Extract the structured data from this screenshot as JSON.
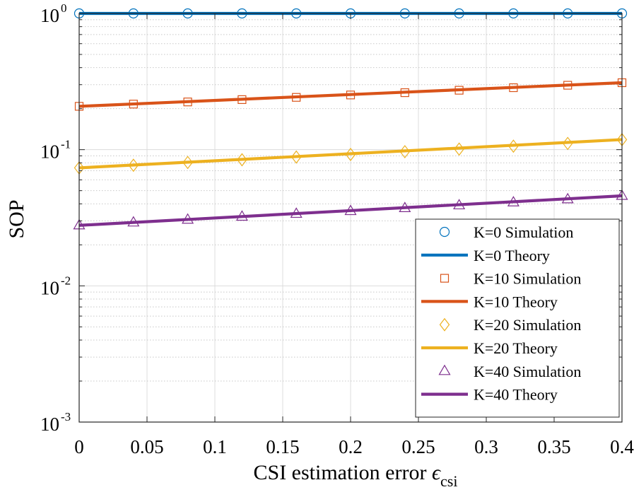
{
  "chart_data": {
    "type": "line",
    "xlabel": "CSI estimation error ",
    "xlabel_symbol": "ϵ",
    "xlabel_subscript": "csi",
    "ylabel": "SOP",
    "yscale": "log",
    "xlim": [
      0,
      0.4
    ],
    "ylim": [
      0.001,
      1
    ],
    "x_ticks": [
      0,
      0.05,
      0.1,
      0.15,
      0.2,
      0.25,
      0.3,
      0.35,
      0.4
    ],
    "x_tick_labels": [
      "0",
      "0.05",
      "0.1",
      "0.15",
      "0.2",
      "0.25",
      "0.3",
      "0.35",
      "0.4"
    ],
    "y_ticks": [
      {
        "value": 1,
        "base": "10",
        "exp": "0"
      },
      {
        "value": 0.1,
        "base": "10",
        "exp": "-1"
      },
      {
        "value": 0.01,
        "base": "10",
        "exp": "-2"
      },
      {
        "value": 0.001,
        "base": "10",
        "exp": "-3"
      }
    ],
    "grid": true,
    "legend_position": "bottom-right",
    "series": [
      {
        "name": "K=0 Simulation",
        "kind": "markers",
        "marker": "circle",
        "color": "#0072BD",
        "x": [
          0,
          0.04,
          0.08,
          0.12,
          0.16,
          0.2,
          0.24,
          0.28,
          0.32,
          0.36,
          0.4
        ],
        "y": [
          1,
          1,
          1,
          1,
          1,
          1,
          1,
          1,
          1,
          1,
          1
        ]
      },
      {
        "name": "K=0 Theory",
        "kind": "line",
        "color": "#0072BD",
        "x": [
          0,
          0.4
        ],
        "y": [
          1,
          1
        ]
      },
      {
        "name": "K=10 Simulation",
        "kind": "markers",
        "marker": "square",
        "color": "#D95319",
        "x": [
          0,
          0.04,
          0.08,
          0.12,
          0.16,
          0.2,
          0.24,
          0.28,
          0.32,
          0.36,
          0.4
        ],
        "y": [
          0.208,
          0.216,
          0.224,
          0.233,
          0.242,
          0.252,
          0.262,
          0.273,
          0.285,
          0.297,
          0.31
        ]
      },
      {
        "name": "K=10 Theory",
        "kind": "line",
        "color": "#D95319",
        "x": [
          0,
          0.4
        ],
        "y": [
          0.208,
          0.31
        ]
      },
      {
        "name": "K=20 Simulation",
        "kind": "markers",
        "marker": "diamond",
        "color": "#EDB120",
        "x": [
          0,
          0.04,
          0.08,
          0.12,
          0.16,
          0.2,
          0.24,
          0.28,
          0.32,
          0.36,
          0.4
        ],
        "y": [
          0.0735,
          0.0768,
          0.0805,
          0.0843,
          0.0882,
          0.0922,
          0.0966,
          0.101,
          0.106,
          0.111,
          0.1185
        ]
      },
      {
        "name": "K=20 Theory",
        "kind": "line",
        "color": "#EDB120",
        "x": [
          0,
          0.4
        ],
        "y": [
          0.0735,
          0.1185
        ]
      },
      {
        "name": "K=40 Simulation",
        "kind": "markers",
        "marker": "triangle",
        "color": "#7E2F8E",
        "x": [
          0,
          0.04,
          0.08,
          0.12,
          0.16,
          0.2,
          0.24,
          0.28,
          0.32,
          0.36,
          0.4
        ],
        "y": [
          0.0278,
          0.0292,
          0.0306,
          0.0322,
          0.0338,
          0.0354,
          0.0372,
          0.039,
          0.041,
          0.0432,
          0.0458
        ]
      },
      {
        "name": "K=40 Theory",
        "kind": "line",
        "color": "#7E2F8E",
        "x": [
          0,
          0.4
        ],
        "y": [
          0.0278,
          0.0458
        ]
      }
    ]
  }
}
